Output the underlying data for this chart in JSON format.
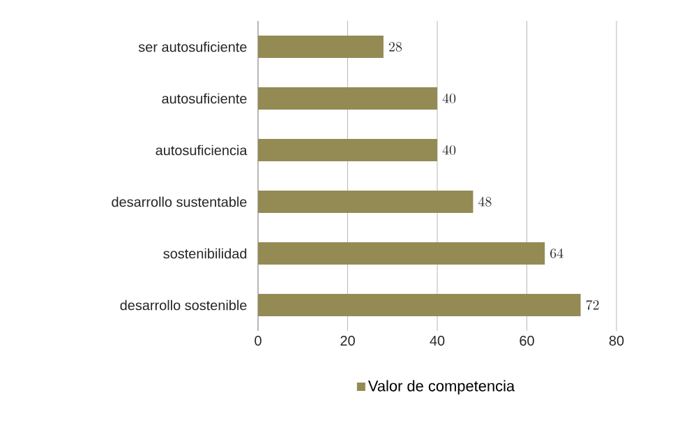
{
  "chart_data": {
    "type": "bar",
    "orientation": "horizontal",
    "categories": [
      "ser autosuficiente",
      "autosuficiente",
      "autosuficiencia",
      "desarrollo sustentable",
      "sostenibilidad",
      "desarrollo sostenible"
    ],
    "series": [
      {
        "name": "Valor de competencia",
        "color": "#948a54",
        "values": [
          28,
          40,
          40,
          48,
          64,
          72
        ]
      }
    ],
    "xlim": [
      0,
      80
    ],
    "xticks": [
      0,
      20,
      40,
      60,
      80
    ],
    "grid": "x",
    "legend": "bottom",
    "data_labels": true
  }
}
